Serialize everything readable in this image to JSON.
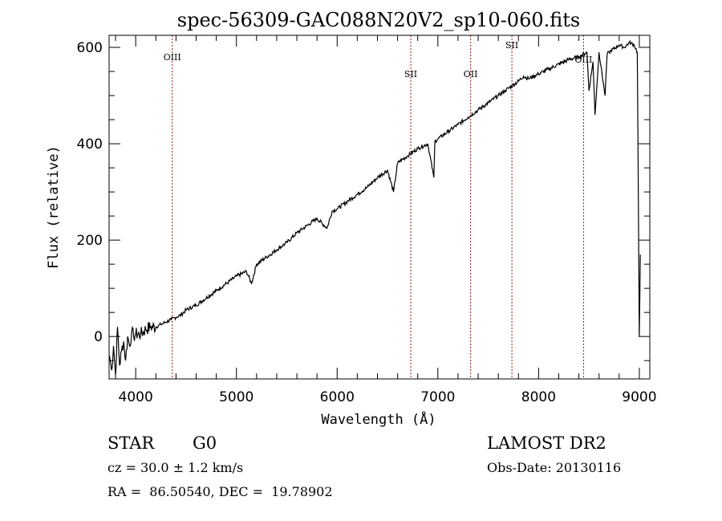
{
  "chart_data": {
    "type": "line",
    "title": "spec-56309-GAC088N20V2_sp10-060.fits",
    "xlabel": "Wavelength (Å)",
    "ylabel": "Flux (relative)",
    "xlim": [
      3736,
      9104
    ],
    "ylim": [
      -88,
      625
    ],
    "xticks": [
      4000,
      5000,
      6000,
      7000,
      8000,
      9000
    ],
    "xtick_labels": [
      "4000",
      "5000",
      "6000",
      "7000",
      "8000",
      "9000"
    ],
    "yticks": [
      0,
      200,
      400,
      600
    ],
    "ytick_labels": [
      "0",
      "200",
      "400",
      "600"
    ],
    "grid": false,
    "line_color": "#000000",
    "marker_color": "#8b1a1a",
    "series": [
      {
        "name": "spectrum",
        "x": [
          3740,
          3760,
          3780,
          3800,
          3820,
          3840,
          3860,
          3880,
          3900,
          3920,
          3940,
          3960,
          3980,
          4000,
          4050,
          4100,
          4150,
          4200,
          4250,
          4300,
          4350,
          4400,
          4450,
          4500,
          4600,
          4700,
          4800,
          4900,
          5000,
          5100,
          5150,
          5200,
          5300,
          5400,
          5500,
          5600,
          5700,
          5800,
          5900,
          5950,
          6000,
          6100,
          6200,
          6300,
          6400,
          6500,
          6560,
          6600,
          6700,
          6800,
          6900,
          6960,
          6970,
          7000,
          7100,
          7200,
          7300,
          7400,
          7500,
          7600,
          7700,
          7800,
          7850,
          7900,
          8000,
          8100,
          8200,
          8300,
          8400,
          8480,
          8500,
          8540,
          8560,
          8600,
          8660,
          8680,
          8700,
          8800,
          8850,
          8900,
          8950,
          8980,
          9000,
          9010
        ],
        "values": [
          -40,
          -70,
          -20,
          -80,
          20,
          -60,
          -30,
          -10,
          -50,
          0,
          -20,
          10,
          0,
          5,
          5,
          15,
          20,
          20,
          25,
          30,
          35,
          40,
          45,
          55,
          65,
          80,
          95,
          110,
          125,
          135,
          110,
          150,
          165,
          180,
          195,
          215,
          230,
          245,
          225,
          260,
          265,
          280,
          295,
          310,
          330,
          345,
          300,
          360,
          375,
          390,
          400,
          330,
          405,
          410,
          425,
          440,
          455,
          470,
          485,
          500,
          515,
          530,
          540,
          535,
          545,
          555,
          565,
          575,
          580,
          590,
          510,
          570,
          460,
          590,
          500,
          585,
          590,
          605,
          600,
          610,
          605,
          590,
          0,
          170
        ]
      }
    ],
    "line_markers": [
      {
        "label": "OIII",
        "wavelength": 4363
      },
      {
        "label": "SII",
        "wavelength": 6731
      },
      {
        "label": "OII",
        "wavelength": 7325
      },
      {
        "label": "SII",
        "wavelength": 7735
      },
      {
        "label": "OIII",
        "wavelength": 8446
      }
    ]
  },
  "info": {
    "object_class": "STAR",
    "subclass": "G0",
    "cz": "cz = 30.0 ± 1.2 km/s",
    "coords": "RA =  86.50540, DEC =  19.78902",
    "survey": "LAMOST DR2",
    "obs_date": "Obs-Date: 20130116"
  }
}
